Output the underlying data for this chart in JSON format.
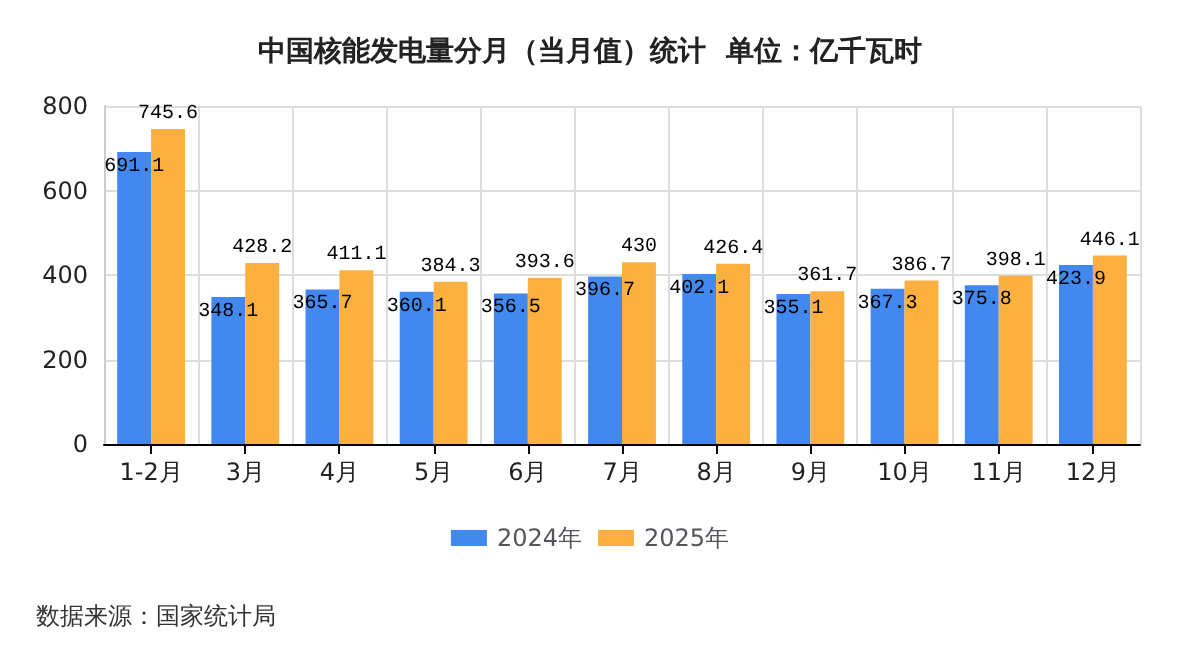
{
  "chart_data": {
    "type": "bar",
    "title": "中国核能发电量分月（当月值）统计  单位：亿千瓦时",
    "categories": [
      "1-2月",
      "3月",
      "4月",
      "5月",
      "6月",
      "7月",
      "8月",
      "9月",
      "10月",
      "11月",
      "12月"
    ],
    "series": [
      {
        "name": "2024年",
        "color": "#4189ee",
        "values": [
          691.1,
          348.1,
          365.7,
          360.1,
          356.5,
          396.7,
          402.1,
          355.1,
          367.3,
          375.8,
          423.9
        ]
      },
      {
        "name": "2025年",
        "color": "#fbb040",
        "values": [
          745.6,
          428.2,
          411.1,
          384.3,
          393.6,
          430,
          426.4,
          361.7,
          386.7,
          398.1,
          446.1
        ]
      }
    ],
    "ylim": [
      0,
      800
    ],
    "yticks": [
      0,
      200,
      400,
      600,
      800
    ],
    "grid": true,
    "legend": "bottom",
    "data_labels": true,
    "annotations": [
      "数据来源：国家统计局"
    ]
  }
}
